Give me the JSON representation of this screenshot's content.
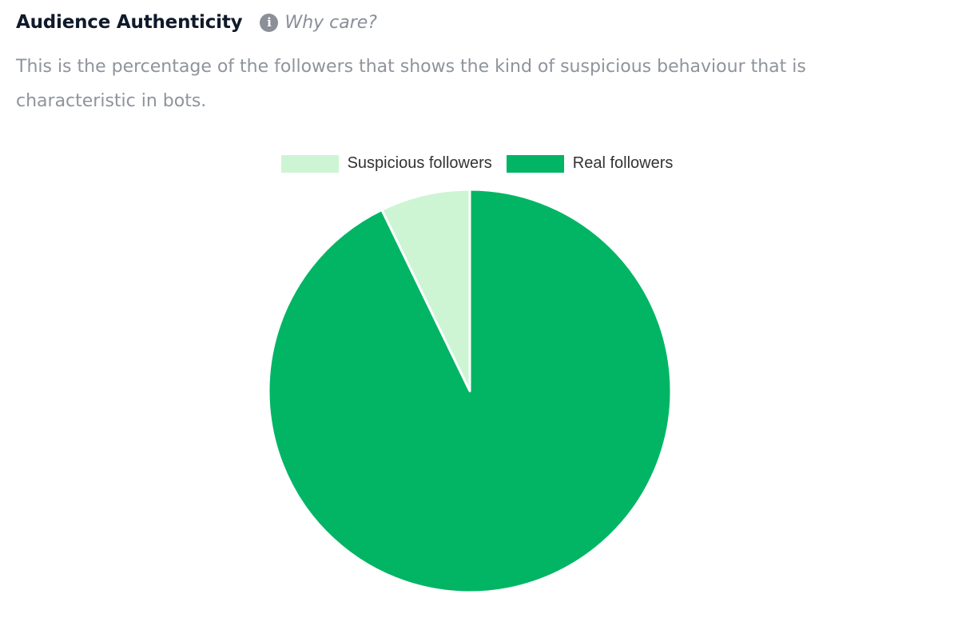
{
  "header": {
    "title": "Audience Authenticity",
    "why_label": "Why care?",
    "info_icon": "info-icon"
  },
  "description": "This is the percentage of the followers that shows the kind of suspicious behaviour that is characteristic in bots.",
  "colors": {
    "suspicious": "#cdf5d4",
    "real": "#02b565",
    "title": "#0f1a2b",
    "muted": "#8f949b"
  },
  "chart_data": {
    "type": "pie",
    "title": "",
    "legend_position": "top",
    "slices": [
      {
        "label": "Suspicious followers",
        "value": 7.2,
        "color": "#cdf5d4"
      },
      {
        "label": "Real followers",
        "value": 92.8,
        "color": "#02b565"
      }
    ]
  }
}
